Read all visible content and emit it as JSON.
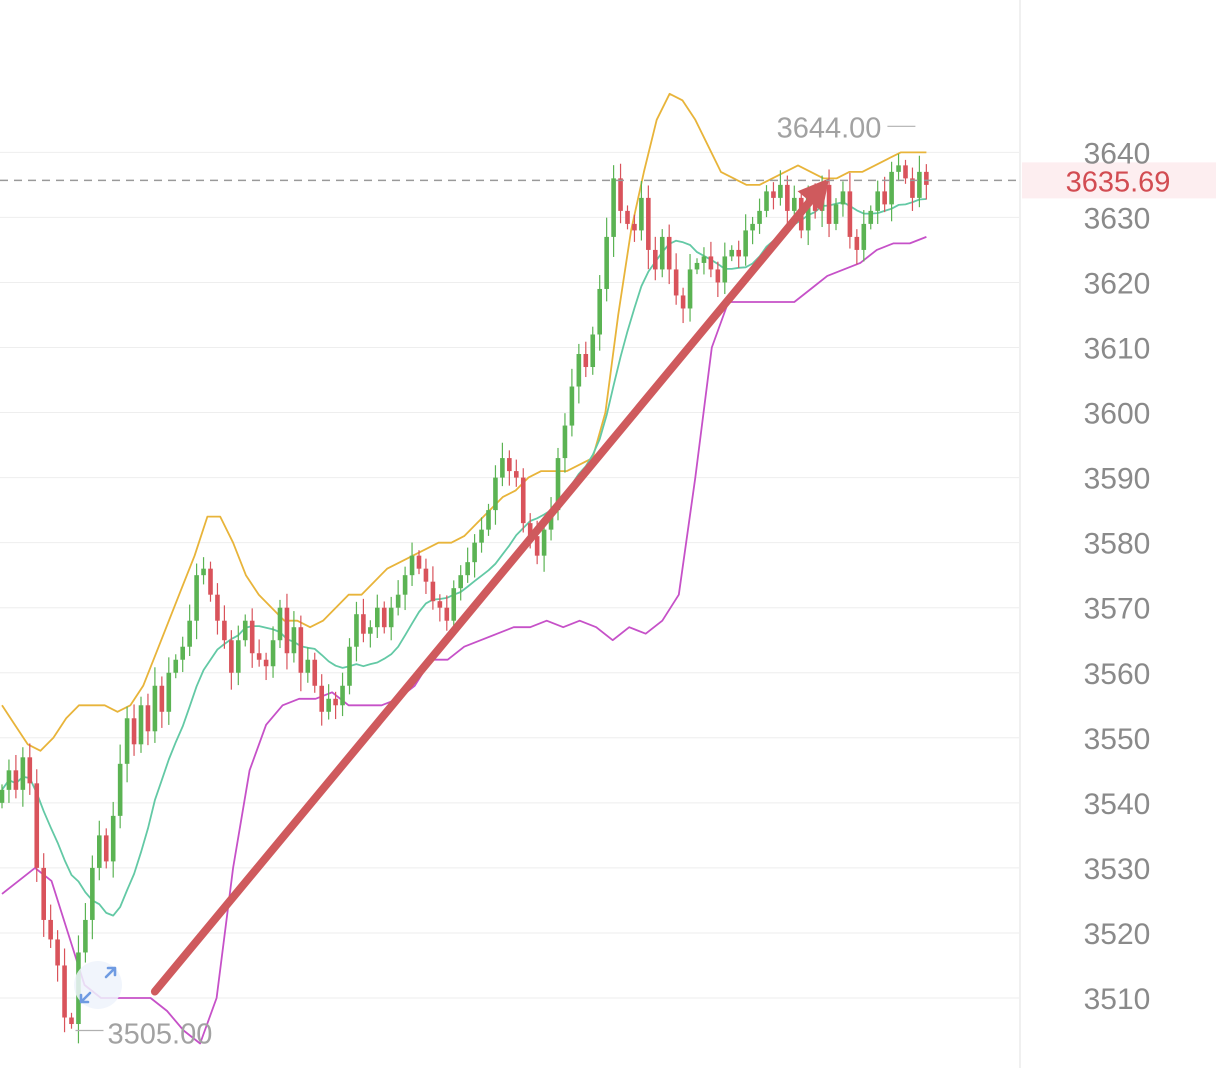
{
  "chart_data": {
    "type": "candlestick",
    "title": "",
    "xlabel": "",
    "ylabel": "",
    "ylim": [
      3500,
      3652
    ],
    "y_ticks": [
      3510,
      3520,
      3530,
      3540,
      3550,
      3560,
      3570,
      3580,
      3590,
      3600,
      3610,
      3620,
      3630,
      3640
    ],
    "grid": true,
    "y_axis_position": "right",
    "current_price": {
      "label": "3635.69",
      "value": 3635.69
    },
    "annotations": [
      {
        "label": "3644.00",
        "value": 3644.0,
        "index": 132
      },
      {
        "label": "3505.00",
        "value": 3505.0,
        "index": 10
      }
    ],
    "colors": {
      "up": "#5bb353",
      "down": "#d9535b",
      "upper_band": "#e8b43a",
      "middle_band": "#63c9a5",
      "lower_band": "#c651c8",
      "arrow": "#cf5a5d",
      "price_label": "#d24c52",
      "price_label_bg": "#fdeef0",
      "grid": "#eeeeee",
      "axis_text": "#8a8a8a"
    },
    "trend_arrow": {
      "from": {
        "index": 22,
        "value": 3511
      },
      "to": {
        "index": 119,
        "value": 3636
      }
    },
    "closes": [
      3542,
      3545,
      3542,
      3547,
      3543,
      3530,
      3522,
      3519,
      3515,
      3507,
      3506,
      3517,
      3522,
      3530,
      3535,
      3531,
      3538,
      3546,
      3553,
      3549,
      3555,
      3551,
      3558,
      3554,
      3560,
      3562,
      3564,
      3568,
      3575,
      3576,
      3572,
      3568,
      3565,
      3560,
      3565,
      3568,
      3563,
      3562,
      3561,
      3565,
      3570,
      3563,
      3567,
      3560,
      3562,
      3558,
      3554,
      3556,
      3555,
      3558,
      3564,
      3569,
      3566,
      3567,
      3570,
      3567,
      3570,
      3572,
      3575,
      3578,
      3576,
      3574,
      3571,
      3570,
      3568,
      3573,
      3575,
      3577,
      3580,
      3582,
      3585,
      3590,
      3593,
      3591,
      3590,
      3583,
      3581,
      3578,
      3582,
      3585,
      3593,
      3598,
      3604,
      3609,
      3607,
      3612,
      3619,
      3627,
      3636,
      3631,
      3629,
      3628,
      3633,
      3625,
      3622,
      3627,
      3622,
      3618,
      3616,
      3622,
      3623,
      3624,
      3622,
      3620,
      3624,
      3625,
      3624,
      3628,
      3629,
      3631,
      3634,
      3633,
      3635,
      3631,
      3633,
      3628,
      3633,
      3631,
      3635,
      3629,
      3632,
      3634,
      3627,
      3625,
      3629,
      3631,
      3634,
      3632,
      3637,
      3638,
      3636,
      3633,
      3637,
      3635
    ],
    "upper_band": [
      3555,
      3552,
      3549,
      3548,
      3550,
      3553,
      3555,
      3555,
      3555,
      3554,
      3555,
      3558,
      3563,
      3568,
      3573,
      3578,
      3584,
      3584,
      3580,
      3575,
      3572,
      3570,
      3568,
      3568,
      3567,
      3568,
      3570,
      3572,
      3572,
      3574,
      3576,
      3577,
      3578,
      3579,
      3580,
      3580,
      3581,
      3583,
      3585,
      3587,
      3588,
      3590,
      3591,
      3591,
      3591,
      3592,
      3593,
      3600,
      3615,
      3628,
      3637,
      3645,
      3649,
      3648,
      3645,
      3641,
      3637,
      3636,
      3635,
      3635,
      3636,
      3637,
      3638,
      3637,
      3636,
      3636,
      3637,
      3637,
      3638,
      3639,
      3640,
      3640,
      3640
    ],
    "lower_band": [
      3526,
      3528,
      3530,
      3528,
      3520,
      3512,
      3510,
      3510,
      3510,
      3510,
      3508,
      3505,
      3503,
      3510,
      3530,
      3545,
      3552,
      3555,
      3556,
      3556,
      3557,
      3555,
      3555,
      3555,
      3556,
      3558,
      3562,
      3562,
      3564,
      3565,
      3566,
      3567,
      3567,
      3568,
      3567,
      3568,
      3567,
      3565,
      3567,
      3566,
      3568,
      3572,
      3590,
      3610,
      3617,
      3617,
      3617,
      3617,
      3617,
      3619,
      3621,
      3622,
      3623,
      3625,
      3626,
      3626,
      3627
    ]
  }
}
